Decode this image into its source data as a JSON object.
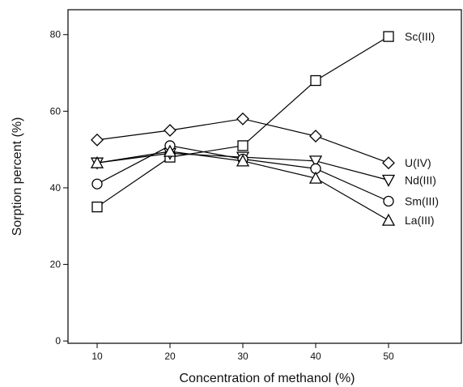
{
  "chart_data": {
    "type": "line",
    "x_label": "Concentration of methanol (%)",
    "y_label": "Sorption percent (%)",
    "x": [
      10,
      20,
      30,
      40,
      50
    ],
    "xlim": [
      6,
      60
    ],
    "xticks": [
      10,
      20,
      30,
      40,
      50
    ],
    "ylim": [
      -0.6,
      86.5
    ],
    "yticks": [
      0,
      20,
      40,
      60,
      80
    ],
    "series": [
      {
        "name": "Sc(III)",
        "color": "#000000",
        "marker": "square",
        "values": [
          35,
          48,
          51,
          68,
          79.5
        ]
      },
      {
        "name": "U(IV)",
        "color": "#000000",
        "marker": "diamond",
        "values": [
          52.5,
          55,
          58,
          53.5,
          46.5
        ]
      },
      {
        "name": "Nd(III)",
        "color": "#000000",
        "marker": "triangle-down",
        "values": [
          46.5,
          49,
          48,
          47,
          42
        ]
      },
      {
        "name": "Sm(III)",
        "color": "#000000",
        "marker": "circle",
        "values": [
          41,
          51,
          47.5,
          45,
          36.5
        ]
      },
      {
        "name": "La(III)",
        "color": "#000000",
        "marker": "triangle-up",
        "values": [
          46.5,
          49.5,
          47,
          42.5,
          31.5
        ]
      }
    ]
  }
}
